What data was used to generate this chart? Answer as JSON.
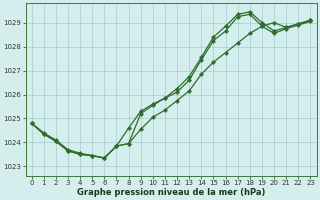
{
  "xlabel": "Graphe pression niveau de la mer (hPa)",
  "bg_color": "#d4eeee",
  "grid_color": "#a8cccc",
  "line_color": "#2d6e2d",
  "x_ticks": [
    0,
    1,
    2,
    3,
    4,
    5,
    6,
    7,
    8,
    9,
    10,
    11,
    12,
    13,
    14,
    15,
    16,
    17,
    18,
    19,
    20,
    21,
    22,
    23
  ],
  "ylim": [
    1022.6,
    1029.8
  ],
  "yticks": [
    1023,
    1024,
    1025,
    1026,
    1027,
    1028,
    1029
  ],
  "line1_x": [
    0,
    1,
    2,
    3,
    4,
    5,
    6,
    7,
    8,
    9,
    10,
    11,
    12,
    13,
    14,
    15,
    16,
    17,
    18,
    19,
    20,
    21,
    22,
    23
  ],
  "line1": [
    1024.8,
    1024.4,
    1024.1,
    1023.7,
    1023.55,
    1023.45,
    1023.35,
    1023.85,
    1023.95,
    1025.2,
    1025.55,
    1025.85,
    1026.25,
    1026.75,
    1027.55,
    1028.4,
    1028.85,
    1029.35,
    1029.45,
    1029.0,
    1028.65,
    1028.8,
    1028.95,
    1029.1
  ],
  "line2_x": [
    0,
    1,
    2,
    3,
    4,
    5,
    6,
    7,
    8,
    9,
    10,
    11,
    12,
    13,
    14,
    15,
    16,
    17,
    18,
    19,
    20,
    21,
    22,
    23
  ],
  "line2": [
    1024.8,
    1024.35,
    1024.05,
    1023.65,
    1023.5,
    1023.45,
    1023.35,
    1023.85,
    1023.95,
    1024.55,
    1025.05,
    1025.35,
    1025.75,
    1026.15,
    1026.85,
    1027.35,
    1027.75,
    1028.15,
    1028.55,
    1028.85,
    1029.0,
    1028.8,
    1028.95,
    1029.1
  ],
  "line3_x": [
    0,
    1,
    2,
    3,
    4,
    5,
    6,
    7,
    8,
    9,
    10,
    11,
    12,
    13,
    14,
    15,
    16,
    17,
    18,
    19,
    20,
    21,
    22,
    23
  ],
  "line3": [
    1024.8,
    1024.35,
    1024.05,
    1023.65,
    1023.5,
    1023.45,
    1023.35,
    1023.85,
    1024.6,
    1025.3,
    1025.6,
    1025.85,
    1026.1,
    1026.6,
    1027.45,
    1028.25,
    1028.65,
    1029.25,
    1029.35,
    1028.85,
    1028.55,
    1028.75,
    1028.9,
    1029.05
  ],
  "xlabel_fontsize": 6.0,
  "tick_fontsize": 5.0
}
